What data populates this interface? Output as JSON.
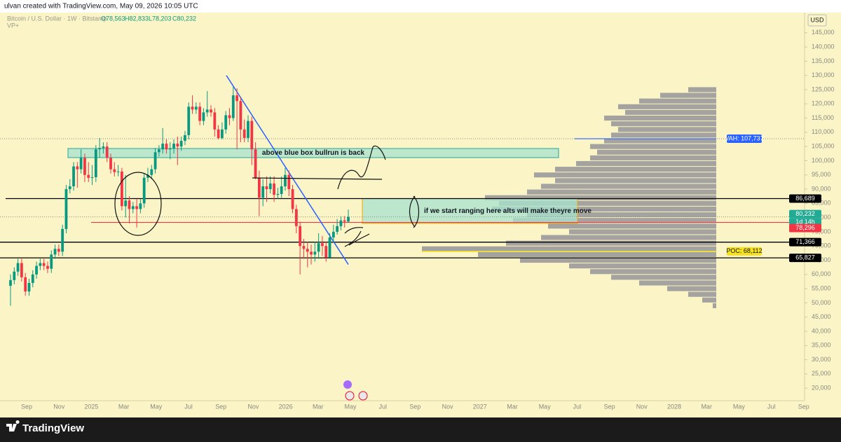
{
  "header": {
    "text": "ulvan created with TradingView.com, May 09, 2026 10:05 UTC"
  },
  "footer": {
    "brand": "TradingView"
  },
  "chart_data": {
    "type": "candlestick",
    "title": "Bitcoin / U.S. Dollar · 1W · Bitstamp",
    "ohlc_labels": [
      "O78,563",
      "H82,833",
      "L78,203",
      "C80,232"
    ],
    "indicator": "VP+",
    "currency": "USD",
    "up_color": "#089981",
    "down_color": "#f23645",
    "candles": [
      [
        56000,
        60000,
        49000,
        58000
      ],
      [
        58000,
        62500,
        56500,
        61000
      ],
      [
        61000,
        65500,
        59500,
        64000
      ],
      [
        64000,
        65500,
        57500,
        59000
      ],
      [
        59000,
        60500,
        52500,
        54000
      ],
      [
        54000,
        58500,
        52500,
        57000
      ],
      [
        57000,
        61500,
        55500,
        60000
      ],
      [
        60000,
        64500,
        58500,
        63000
      ],
      [
        63000,
        65500,
        61500,
        64000
      ],
      [
        64000,
        65500,
        61500,
        63000
      ],
      [
        63000,
        64500,
        60500,
        62000
      ],
      [
        62000,
        68500,
        60500,
        67000
      ],
      [
        67000,
        70500,
        65500,
        69000
      ],
      [
        69000,
        70500,
        66500,
        68000
      ],
      [
        68000,
        77500,
        66500,
        76000
      ],
      [
        76000,
        91500,
        74500,
        90000
      ],
      [
        90000,
        93500,
        88500,
        91000
      ],
      [
        91000,
        99500,
        89500,
        98000
      ],
      [
        98000,
        99500,
        90500,
        97000
      ],
      [
        97000,
        104000,
        95500,
        101000
      ],
      [
        101000,
        102500,
        92500,
        95000
      ],
      [
        95000,
        99500,
        92500,
        94000
      ],
      [
        94000,
        98500,
        91500,
        94200
      ],
      [
        94200,
        105500,
        92500,
        104000
      ],
      [
        104000,
        108000,
        101000,
        104500
      ],
      [
        104500,
        106500,
        102500,
        105000
      ],
      [
        105000,
        106500,
        99500,
        101000
      ],
      [
        101000,
        102500,
        95500,
        97000
      ],
      [
        97000,
        99500,
        94500,
        96000
      ],
      [
        96000,
        98500,
        94500,
        96200
      ],
      [
        96200,
        97500,
        82500,
        84000
      ],
      [
        84000,
        95000,
        80000,
        86000
      ],
      [
        86000,
        87500,
        78000,
        83000
      ],
      [
        83000,
        85500,
        81500,
        84000
      ],
      [
        84000,
        86500,
        76500,
        83000
      ],
      [
        83000,
        86500,
        81500,
        85000
      ],
      [
        85000,
        95500,
        83500,
        94000
      ],
      [
        94000,
        97500,
        92500,
        95000
      ],
      [
        95000,
        98500,
        93500,
        97000
      ],
      [
        97000,
        104500,
        95500,
        103000
      ],
      [
        103000,
        105500,
        101500,
        104000
      ],
      [
        104000,
        111500,
        102500,
        106000
      ],
      [
        106000,
        107500,
        102500,
        104000
      ],
      [
        104000,
        106500,
        100500,
        104300
      ],
      [
        104300,
        107500,
        102500,
        106000
      ],
      [
        106000,
        108500,
        98500,
        105000
      ],
      [
        105000,
        108500,
        103500,
        107000
      ],
      [
        107000,
        110500,
        105500,
        109000
      ],
      [
        109000,
        120500,
        107500,
        119000
      ],
      [
        119000,
        123000,
        116500,
        118000
      ],
      [
        118000,
        120500,
        116500,
        119000
      ],
      [
        119000,
        120500,
        112500,
        114000
      ],
      [
        114000,
        118500,
        112500,
        117000
      ],
      [
        117000,
        124500,
        115500,
        118000
      ],
      [
        118000,
        119500,
        115500,
        117000
      ],
      [
        117000,
        118500,
        108500,
        111000
      ],
      [
        111000,
        112500,
        107500,
        108000
      ],
      [
        108000,
        113500,
        107500,
        111000
      ],
      [
        111000,
        117500,
        109500,
        116000
      ],
      [
        116000,
        118500,
        112500,
        115000
      ],
      [
        115000,
        126000,
        114000,
        123000
      ],
      [
        123000,
        125500,
        104000,
        121000
      ],
      [
        121000,
        122500,
        106500,
        111000
      ],
      [
        111000,
        114500,
        106500,
        108000
      ],
      [
        108000,
        116000,
        106500,
        114000
      ],
      [
        114000,
        115500,
        98500,
        104000
      ],
      [
        104000,
        106500,
        93500,
        94000
      ],
      [
        94000,
        96500,
        80500,
        87000
      ],
      [
        87000,
        93500,
        84000,
        91000
      ],
      [
        91000,
        94500,
        85500,
        90000
      ],
      [
        90000,
        94500,
        88500,
        92000
      ],
      [
        92000,
        94500,
        85500,
        88000
      ],
      [
        88000,
        90500,
        86500,
        88300
      ],
      [
        88300,
        94500,
        87000,
        91000
      ],
      [
        91000,
        97500,
        89500,
        95000
      ],
      [
        95000,
        96500,
        87500,
        90000
      ],
      [
        90000,
        91500,
        81500,
        83000
      ],
      [
        83000,
        84500,
        74500,
        77000
      ],
      [
        77000,
        78500,
        60000,
        70000
      ],
      [
        70000,
        72500,
        65500,
        69000
      ],
      [
        69000,
        71500,
        62500,
        68000
      ],
      [
        68000,
        70500,
        63500,
        67000
      ],
      [
        67000,
        71500,
        64500,
        68000
      ],
      [
        68000,
        74500,
        65500,
        71000
      ],
      [
        71000,
        73500,
        66500,
        70000
      ],
      [
        70000,
        71500,
        64500,
        66000
      ],
      [
        66000,
        74500,
        65500,
        73000
      ],
      [
        73000,
        77500,
        71500,
        75000
      ],
      [
        75000,
        79500,
        74000,
        77000
      ],
      [
        77000,
        80500,
        75500,
        79000
      ],
      [
        79000,
        80500,
        76500,
        78563
      ],
      [
        78563,
        82833,
        78203,
        80232
      ]
    ],
    "ylim": [
      15600,
      152100
    ],
    "yticks": [
      {
        "value": 20000,
        "label": "20,000"
      },
      {
        "value": 25000,
        "label": "25,000"
      },
      {
        "value": 30000,
        "label": "30,000"
      },
      {
        "value": 35000,
        "label": "35,000"
      },
      {
        "value": 40000,
        "label": "40,000"
      },
      {
        "value": 45000,
        "label": "45,000"
      },
      {
        "value": 50000,
        "label": "50,000"
      },
      {
        "value": 55000,
        "label": "55,000"
      },
      {
        "value": 60000,
        "label": "60,000"
      },
      {
        "value": 65000,
        "label": "65,000"
      },
      {
        "value": 70000,
        "label": "70,000"
      },
      {
        "value": 75000,
        "label": "75,000"
      },
      {
        "value": 80000,
        "label": "80,000"
      },
      {
        "value": 85000,
        "label": "85,000"
      },
      {
        "value": 90000,
        "label": "90,000"
      },
      {
        "value": 95000,
        "label": "95,000"
      },
      {
        "value": 100000,
        "label": "100,000"
      },
      {
        "value": 105000,
        "label": "105,000"
      },
      {
        "value": 110000,
        "label": "110,000"
      },
      {
        "value": 115000,
        "label": "115,000"
      },
      {
        "value": 120000,
        "label": "120,000"
      },
      {
        "value": 125000,
        "label": "125,000"
      },
      {
        "value": 130000,
        "label": "130,000"
      },
      {
        "value": 135000,
        "label": "135,000"
      },
      {
        "value": 140000,
        "label": "140,000"
      },
      {
        "value": 145000,
        "label": "145,000"
      }
    ],
    "x_labels": [
      "Sep",
      "Nov",
      "2025",
      "Mar",
      "May",
      "Jul",
      "Sep",
      "Nov",
      "2026",
      "Mar",
      "May",
      "Jul",
      "Sep",
      "Nov",
      "2027",
      "Mar",
      "May",
      "Jul",
      "Sep",
      "Nov",
      "2028",
      "Mar",
      "May",
      "Jul",
      "Sep"
    ],
    "price_lines": [
      {
        "value": 86689,
        "label": "86,689",
        "color": "#000000"
      },
      {
        "value": 71366,
        "label": "71,366",
        "color": "#000000"
      },
      {
        "value": 65827,
        "label": "65,827",
        "color": "#000000"
      }
    ],
    "current_price": {
      "value": 80232,
      "label": "80,232",
      "countdown": "1d 14h",
      "color": "#22ab94"
    },
    "red_line": {
      "value": 78296,
      "label": "78,296",
      "color": "#f23645"
    },
    "volume_profile": {
      "bins": [
        48000,
        50000,
        52000,
        54000,
        56000,
        58000,
        60000,
        62000,
        64000,
        66000,
        68000,
        70000,
        72000,
        74000,
        76000,
        78000,
        80000,
        82000,
        84000,
        86000,
        88000,
        90000,
        92000,
        94000,
        96000,
        98000,
        100000,
        102000,
        104000,
        106000,
        108000,
        110000,
        112000,
        114000,
        116000,
        118000,
        120000,
        122000,
        124000,
        126000
      ],
      "volumes": [
        5,
        20,
        40,
        70,
        110,
        150,
        180,
        210,
        280,
        340,
        420,
        300,
        250,
        210,
        240,
        290,
        270,
        320,
        310,
        330,
        270,
        250,
        230,
        260,
        230,
        200,
        180,
        170,
        180,
        160,
        150,
        140,
        150,
        160,
        130,
        140,
        110,
        80,
        40
      ],
      "color": "#9a9a9a",
      "vah": {
        "value": 107737,
        "label": "VAH: 107,737",
        "color": "#2962ff"
      },
      "poc": {
        "value": 68112,
        "label": "POC: 68,112",
        "color": "#f5e11d"
      }
    },
    "zones": [
      {
        "top": 104300,
        "bottom": 101100,
        "label": "above blue box bullrun is back",
        "color": "#a8e3cf",
        "border": "#26a69a"
      },
      {
        "top": 86689,
        "bottom": 77950,
        "label": "if we start ranging here alts will make theyre move",
        "color": "#a8e3cf",
        "border": "#f7a600"
      }
    ],
    "trendline": {
      "from": 130000,
      "to": 63500,
      "color": "#2962ff"
    }
  }
}
